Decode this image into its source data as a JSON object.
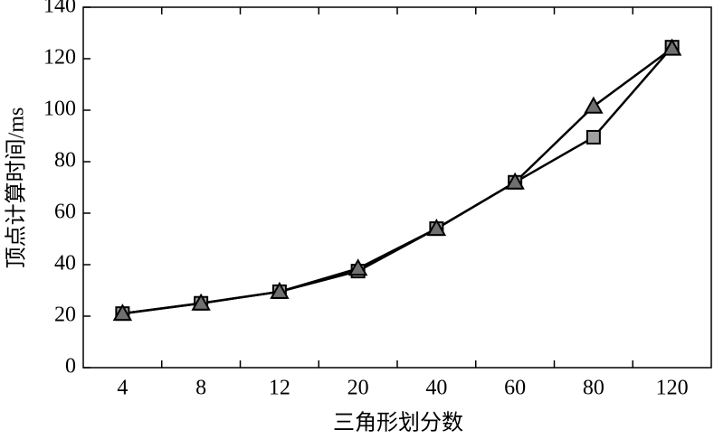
{
  "chart_data": {
    "type": "line",
    "xlabel": "三角形划分数",
    "ylabel": "顶点计算时间/ms",
    "categories": [
      "4",
      "8",
      "12",
      "20",
      "40",
      "60",
      "80",
      "120"
    ],
    "series": [
      {
        "color": "#a0a0a0",
        "marker": "square",
        "values": [
          21,
          25,
          29.5,
          37.5,
          54,
          72,
          89.5,
          124.5
        ]
      },
      {
        "color": "#707070",
        "marker": "triangle",
        "values": [
          21,
          25,
          29.5,
          38.5,
          54,
          72,
          101.5,
          124
        ]
      }
    ],
    "ylim": [
      0,
      140
    ],
    "yticks": [
      0,
      20,
      40,
      60,
      80,
      100,
      120,
      140
    ]
  }
}
